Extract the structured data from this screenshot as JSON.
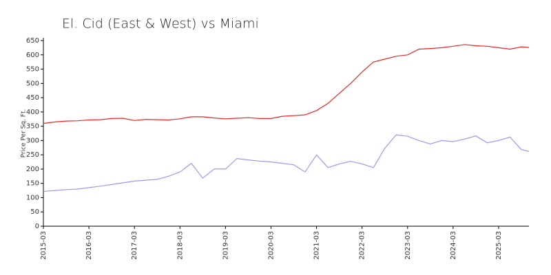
{
  "chart_data": {
    "type": "line",
    "title": "El. Cid (East & West) vs Miami",
    "y_label": "Price Per Sq. Ft.",
    "x": [
      "2015-03",
      "2015-06",
      "2015-09",
      "2015-12",
      "2016-03",
      "2016-06",
      "2016-09",
      "2016-12",
      "2017-03",
      "2017-06",
      "2017-09",
      "2017-12",
      "2018-03",
      "2018-06",
      "2018-09",
      "2018-12",
      "2019-03",
      "2019-06",
      "2019-09",
      "2019-12",
      "2020-03",
      "2020-06",
      "2020-09",
      "2020-12",
      "2021-03",
      "2021-06",
      "2021-09",
      "2021-12",
      "2022-03",
      "2022-06",
      "2022-09",
      "2022-12",
      "2023-03",
      "2023-06",
      "2023-09",
      "2023-12",
      "2024-03",
      "2024-06",
      "2024-09",
      "2024-12",
      "2025-03",
      "2025-06",
      "2025-09",
      "2025-11"
    ],
    "series": [
      {
        "color": "#ee2222",
        "values": [
          360,
          365,
          368,
          369,
          372,
          373,
          377,
          378,
          370,
          374,
          373,
          372,
          376,
          383,
          383,
          379,
          376,
          378,
          380,
          377,
          377,
          385,
          387,
          390,
          405,
          430,
          465,
          500,
          540,
          575,
          585,
          595,
          600,
          620,
          622,
          625,
          630,
          636,
          632,
          630,
          625,
          620,
          628,
          626
        ]
      },
      {
        "color": "#9999ee",
        "values": [
          122,
          125,
          128,
          130,
          135,
          140,
          146,
          152,
          158,
          161,
          164,
          175,
          190,
          220,
          168,
          200,
          200,
          237,
          232,
          228,
          225,
          220,
          215,
          190,
          250,
          205,
          218,
          227,
          218,
          205,
          273,
          320,
          315,
          300,
          288,
          300,
          296,
          305,
          316,
          292,
          300,
          312,
          268,
          262
        ]
      }
    ],
    "xlim": [
      "2015-03",
      "2025-11"
    ],
    "xticks": [
      "2015-03",
      "2016-03",
      "2017-03",
      "2018-03",
      "2019-03",
      "2020-03",
      "2021-03",
      "2022-03",
      "2023-03",
      "2024-03",
      "2025-03"
    ],
    "ylim": [
      0,
      650
    ],
    "yticks": [
      0,
      50,
      100,
      150,
      200,
      250,
      300,
      350,
      400,
      450,
      500,
      550,
      600,
      650
    ],
    "grid": false
  }
}
